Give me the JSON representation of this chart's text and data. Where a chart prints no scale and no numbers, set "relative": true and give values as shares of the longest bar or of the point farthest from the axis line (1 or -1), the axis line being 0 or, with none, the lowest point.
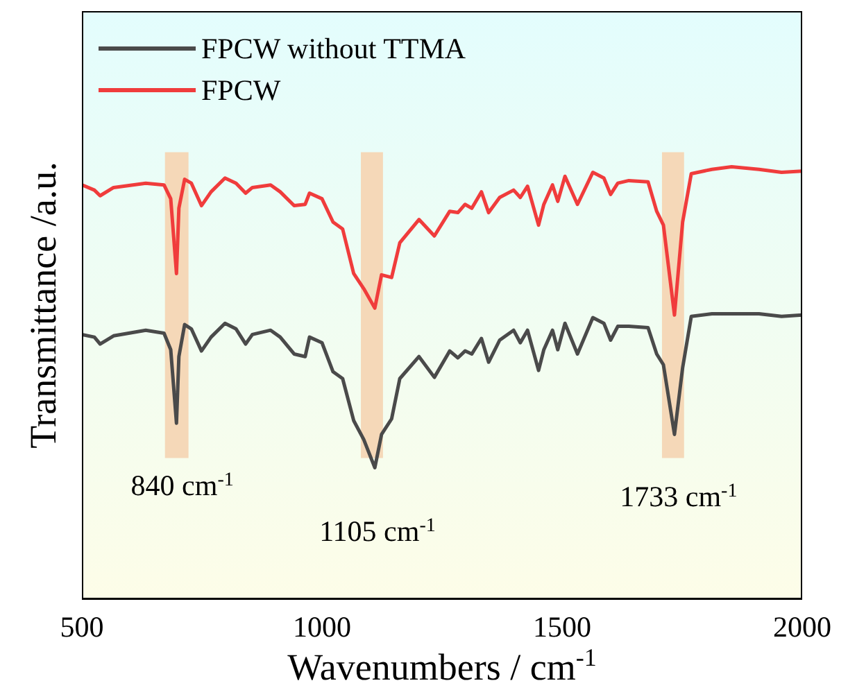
{
  "chart_data": {
    "type": "line",
    "relative": true,
    "xlabel": "Wavenumbers / cm$^{-1}$",
    "ylabel": "Transmittance /a.u.",
    "xlim": [
      500,
      2000
    ],
    "xticks": [
      500,
      1000,
      1500,
      2000
    ],
    "x": [
      500,
      526,
      538,
      566,
      633,
      671,
      685,
      697,
      702,
      714,
      728,
      749,
      769,
      798,
      821,
      841,
      855,
      893,
      913,
      942,
      965,
      974,
      1000,
      1023,
      1043,
      1066,
      1087,
      1110,
      1124,
      1145,
      1162,
      1202,
      1234,
      1266,
      1283,
      1298,
      1312,
      1332,
      1347,
      1370,
      1399,
      1413,
      1428,
      1451,
      1462,
      1480,
      1491,
      1506,
      1532,
      1564,
      1587,
      1601,
      1616,
      1639,
      1679,
      1697,
      1711,
      1734,
      1751,
      1769,
      1812,
      1853,
      1910,
      1957,
      2000
    ],
    "series": [
      {
        "name": "FPCW without TTMA",
        "color": "#4a4a4a",
        "values": [
          0.612,
          0.606,
          0.59,
          0.609,
          0.622,
          0.615,
          0.577,
          0.407,
          0.561,
          0.635,
          0.625,
          0.574,
          0.606,
          0.638,
          0.625,
          0.59,
          0.612,
          0.622,
          0.606,
          0.567,
          0.561,
          0.606,
          0.593,
          0.526,
          0.51,
          0.413,
          0.369,
          0.304,
          0.381,
          0.417,
          0.51,
          0.561,
          0.513,
          0.574,
          0.558,
          0.574,
          0.567,
          0.603,
          0.548,
          0.599,
          0.622,
          0.593,
          0.622,
          0.529,
          0.577,
          0.622,
          0.577,
          0.638,
          0.567,
          0.651,
          0.638,
          0.599,
          0.631,
          0.631,
          0.628,
          0.567,
          0.542,
          0.381,
          0.535,
          0.654,
          0.66,
          0.66,
          0.66,
          0.654,
          0.657
        ]
      },
      {
        "name": "FPCW",
        "color": "#f03c3c",
        "values": [
          0.958,
          0.946,
          0.933,
          0.952,
          0.962,
          0.958,
          0.926,
          0.753,
          0.904,
          0.971,
          0.962,
          0.91,
          0.942,
          0.974,
          0.962,
          0.939,
          0.952,
          0.958,
          0.942,
          0.91,
          0.913,
          0.939,
          0.926,
          0.872,
          0.856,
          0.753,
          0.718,
          0.673,
          0.75,
          0.744,
          0.824,
          0.878,
          0.84,
          0.897,
          0.894,
          0.913,
          0.904,
          0.942,
          0.894,
          0.929,
          0.946,
          0.929,
          0.955,
          0.865,
          0.913,
          0.958,
          0.92,
          0.978,
          0.913,
          0.987,
          0.974,
          0.936,
          0.962,
          0.968,
          0.965,
          0.897,
          0.865,
          0.657,
          0.872,
          0.984,
          0.994,
          1.0,
          0.994,
          0.987,
          0.99
        ]
      }
    ],
    "bands": [
      {
        "axis": "x",
        "from": 673,
        "to": 722,
        "label": "840 cm$^{-1}$",
        "color": "#f5d8b8"
      },
      {
        "axis": "x",
        "from": 1081,
        "to": 1127,
        "label": "1105 cm$^{-1}$",
        "color": "#f5d8b8"
      },
      {
        "axis": "x",
        "from": 1708,
        "to": 1754,
        "label": "1733 cm$^{-1}$",
        "color": "#f5d8b8"
      }
    ],
    "legend": "top left",
    "marker": "none",
    "line_style": "solid",
    "grid": false
  }
}
